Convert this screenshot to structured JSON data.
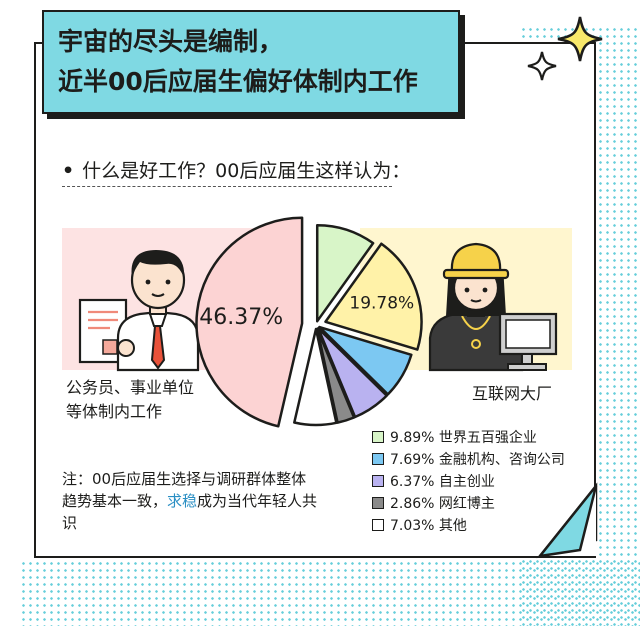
{
  "title": {
    "line1": "宇宙的尽头是编制，",
    "line2": "近半00后应届生偏好体制内工作"
  },
  "question": "什么是好工作？00后应届生这样认为：",
  "left_label": [
    "公务员、事业单位",
    "等体制内工作"
  ],
  "right_label": "互联网大厂",
  "note": {
    "prefix": "注：00后应届生选择与调研群体整体趋势基本一致，",
    "highlight": "求稳",
    "suffix": "成为当代年轻人共识"
  },
  "colors": {
    "outline": "#1d1d1b",
    "accent": "#7fd9e3",
    "highlight": "#2a8fc4"
  },
  "chart_data": {
    "type": "pie",
    "slices": [
      {
        "label": "公务员、事业单位等体制内工作",
        "value": 46.37,
        "display": "46.37%",
        "color": "#fcd3d3"
      },
      {
        "label": "世界五百强企业",
        "value": 9.89,
        "display": "9.89% 世界五百强企业",
        "color": "#d8f5c8"
      },
      {
        "label": "互联网大厂",
        "value": 19.78,
        "display": "19.78%",
        "color": "#fff2a8"
      },
      {
        "label": "金融机构、咨询公司",
        "value": 7.69,
        "display": "7.69% 金融机构、咨询公司",
        "color": "#7cc8f2"
      },
      {
        "label": "自主创业",
        "value": 6.37,
        "display": "6.37% 自主创业",
        "color": "#b9b2f0"
      },
      {
        "label": "网红博主",
        "value": 2.86,
        "display": "2.86% 网红博主",
        "color": "#8a8a8a"
      },
      {
        "label": "其他",
        "value": 7.03,
        "display": "7.03% 其他",
        "color": "#ffffff"
      }
    ],
    "data_labels": [
      "46.37%",
      "19.78%"
    ],
    "legend": [
      "9.89% 世界五百强企业",
      "7.69% 金融机构、咨询公司",
      "6.37% 自主创业",
      "2.86% 网红博主",
      "7.03% 其他"
    ],
    "legend_position": "bottom-right"
  }
}
